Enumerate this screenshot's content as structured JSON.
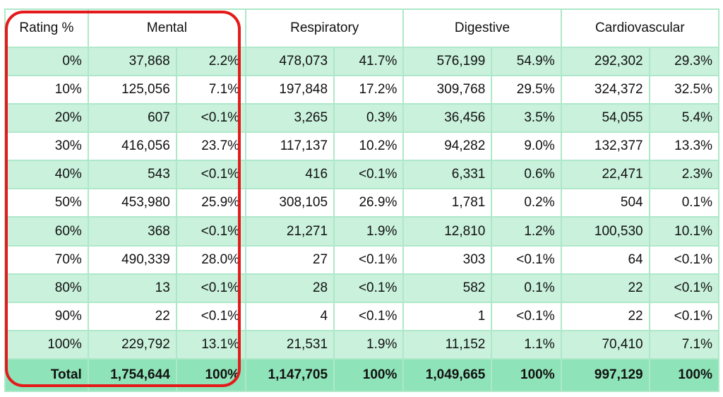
{
  "table": {
    "headers": {
      "rating": "Rating %",
      "groups": [
        "Mental",
        "Respiratory",
        "Digestive",
        "Cardiovascular"
      ]
    },
    "rows": [
      {
        "rating": "0%",
        "cells": [
          "37,868",
          "2.2%",
          "478,073",
          "41.7%",
          "576,199",
          "54.9%",
          "292,302",
          "29.3%"
        ]
      },
      {
        "rating": "10%",
        "cells": [
          "125,056",
          "7.1%",
          "197,848",
          "17.2%",
          "309,768",
          "29.5%",
          "324,372",
          "32.5%"
        ]
      },
      {
        "rating": "20%",
        "cells": [
          "607",
          "<0.1%",
          "3,265",
          "0.3%",
          "36,456",
          "3.5%",
          "54,055",
          "5.4%"
        ]
      },
      {
        "rating": "30%",
        "cells": [
          "416,056",
          "23.7%",
          "117,137",
          "10.2%",
          "94,282",
          "9.0%",
          "132,377",
          "13.3%"
        ]
      },
      {
        "rating": "40%",
        "cells": [
          "543",
          "<0.1%",
          "416",
          "<0.1%",
          "6,331",
          "0.6%",
          "22,471",
          "2.3%"
        ]
      },
      {
        "rating": "50%",
        "cells": [
          "453,980",
          "25.9%",
          "308,105",
          "26.9%",
          "1,781",
          "0.2%",
          "504",
          "0.1%"
        ]
      },
      {
        "rating": "60%",
        "cells": [
          "368",
          "<0.1%",
          "21,271",
          "1.9%",
          "12,810",
          "1.2%",
          "100,530",
          "10.1%"
        ]
      },
      {
        "rating": "70%",
        "cells": [
          "490,339",
          "28.0%",
          "27",
          "<0.1%",
          "303",
          "<0.1%",
          "64",
          "<0.1%"
        ]
      },
      {
        "rating": "80%",
        "cells": [
          "13",
          "<0.1%",
          "28",
          "<0.1%",
          "582",
          "0.1%",
          "22",
          "<0.1%"
        ]
      },
      {
        "rating": "90%",
        "cells": [
          "22",
          "<0.1%",
          "4",
          "<0.1%",
          "1",
          "<0.1%",
          "22",
          "<0.1%"
        ]
      },
      {
        "rating": "100%",
        "cells": [
          "229,792",
          "13.1%",
          "21,531",
          "1.9%",
          "11,152",
          "1.1%",
          "70,410",
          "7.1%"
        ]
      }
    ],
    "total": {
      "label": "Total",
      "cells": [
        "1,754,644",
        "100%",
        "1,147,705",
        "100%",
        "1,049,665",
        "100%",
        "997,129",
        "100%"
      ]
    }
  },
  "colors": {
    "border": "#aee8c9",
    "stripe": "#c9f1dc",
    "total_row": "#8fe3b8",
    "highlight": "#e41a1a"
  }
}
